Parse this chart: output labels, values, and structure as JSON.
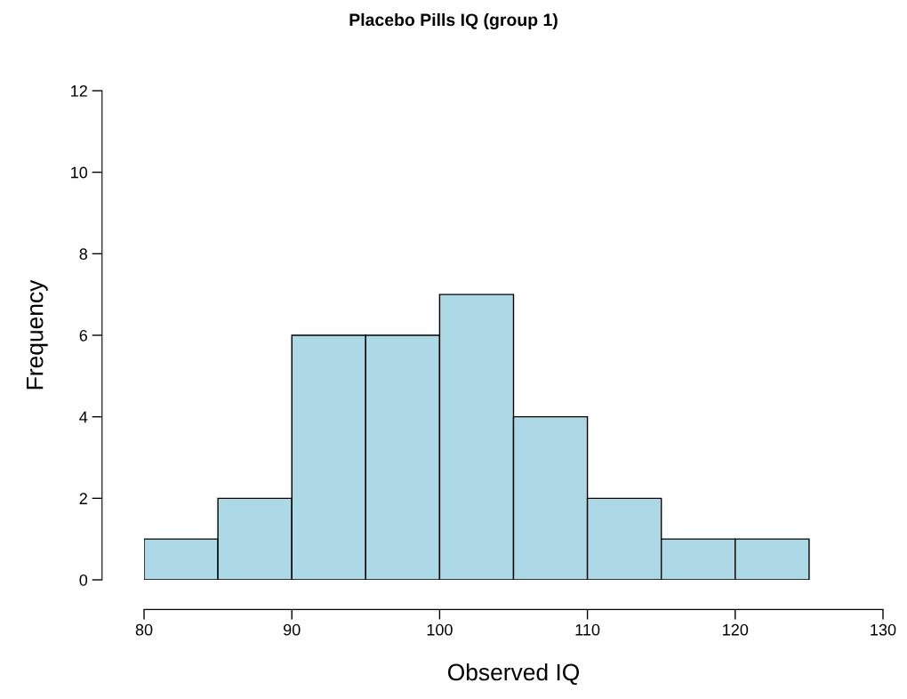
{
  "chart_data": {
    "type": "histogram",
    "title": "Placebo Pills IQ (group 1)",
    "xlabel": "Observed IQ",
    "ylabel": "Frequency",
    "bins": [
      80,
      85,
      90,
      95,
      100,
      105,
      110,
      115,
      120,
      125
    ],
    "values": [
      1,
      2,
      6,
      6,
      7,
      4,
      2,
      1,
      1
    ],
    "color": "#add8e6",
    "xlim": [
      80,
      130
    ],
    "xticks": [
      80,
      90,
      100,
      110,
      120,
      130
    ],
    "ylim": [
      0,
      12
    ],
    "yticks": [
      0,
      2,
      4,
      6,
      8,
      10,
      12
    ],
    "grid": false
  }
}
